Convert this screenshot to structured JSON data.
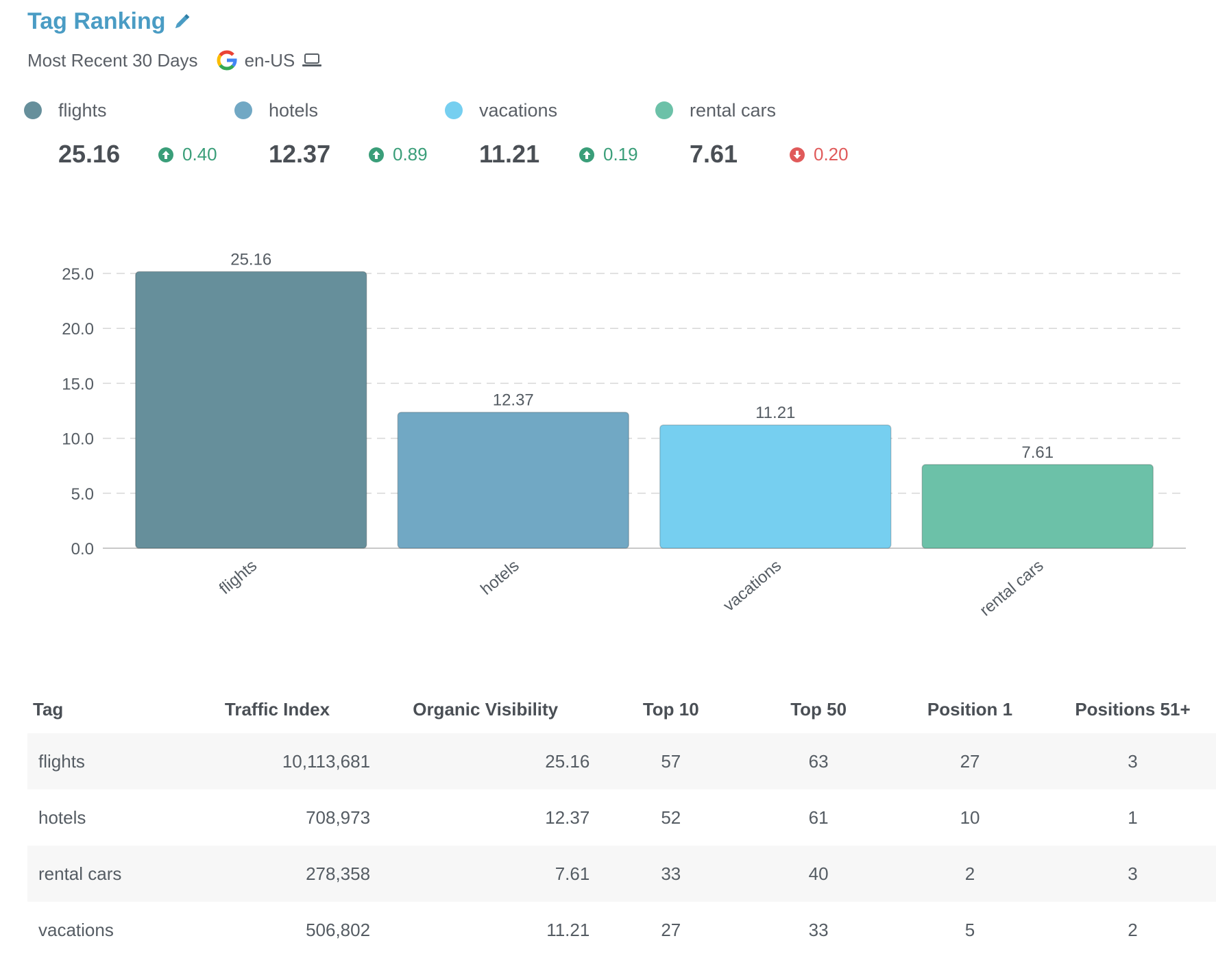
{
  "header": {
    "title": "Tag Ranking",
    "edit_icon": "pencil-icon",
    "period": "Most Recent 30 Days",
    "search_engine_icon": "google-icon",
    "locale": "en-US",
    "device_icon": "laptop-icon"
  },
  "legend": [
    {
      "name": "flights",
      "value": "25.16",
      "change": "0.40",
      "direction": "up",
      "color": "#668f9b"
    },
    {
      "name": "hotels",
      "value": "12.37",
      "change": "0.89",
      "direction": "up",
      "color": "#71a8c4"
    },
    {
      "name": "vacations",
      "value": "11.21",
      "change": "0.19",
      "direction": "up",
      "color": "#76cff0"
    },
    {
      "name": "rental cars",
      "value": "7.61",
      "change": "0.20",
      "direction": "down",
      "color": "#6cc1a8"
    }
  ],
  "chart_data": {
    "type": "bar",
    "categories": [
      "flights",
      "hotels",
      "vacations",
      "rental cars"
    ],
    "values": [
      25.16,
      12.37,
      11.21,
      7.61
    ],
    "data_labels": [
      "25.16",
      "12.37",
      "11.21",
      "7.61"
    ],
    "colors": [
      "#668f9b",
      "#71a8c4",
      "#76cff0",
      "#6cc1a8"
    ],
    "y_ticks": [
      "0.0",
      "5.0",
      "10.0",
      "15.0",
      "20.0",
      "25.0"
    ],
    "ylim": [
      0,
      25
    ],
    "grid": "dashed horizontal",
    "legend": "top"
  },
  "table": {
    "columns": [
      "Tag",
      "Traffic Index",
      "Organic Visibility",
      "Top 10",
      "Top 50",
      "Position 1",
      "Positions 51+"
    ],
    "rows": [
      [
        "flights",
        "10,113,681",
        "25.16",
        "57",
        "63",
        "27",
        "3"
      ],
      [
        "hotels",
        "708,973",
        "12.37",
        "52",
        "61",
        "10",
        "1"
      ],
      [
        "rental cars",
        "278,358",
        "7.61",
        "33",
        "40",
        "2",
        "3"
      ],
      [
        "vacations",
        "506,802",
        "11.21",
        "27",
        "33",
        "5",
        "2"
      ]
    ]
  }
}
